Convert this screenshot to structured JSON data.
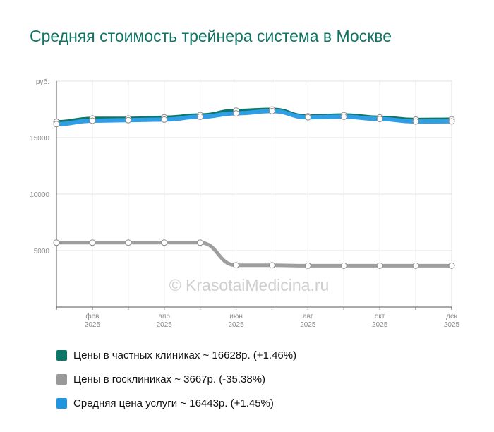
{
  "chart_data": {
    "type": "line",
    "title": "Средняя стоимость трейнера система в Москве",
    "ylabel": "руб.",
    "ylim": [
      0,
      20000
    ],
    "y_ticks": [
      {
        "value": 5000,
        "label": "5000"
      },
      {
        "value": 10000,
        "label": "10000"
      },
      {
        "value": 15000,
        "label": "15000"
      },
      {
        "value": 20000,
        "label": "руб."
      }
    ],
    "x_points": 12,
    "x_ticks": [
      {
        "index": 1,
        "label": "фев",
        "year": "2025"
      },
      {
        "index": 3,
        "label": "апр",
        "year": "2025"
      },
      {
        "index": 5,
        "label": "июн",
        "year": "2025"
      },
      {
        "index": 7,
        "label": "авг",
        "year": "2025"
      },
      {
        "index": 9,
        "label": "окт",
        "year": "2025"
      },
      {
        "index": 11,
        "label": "дек",
        "year": "2025"
      }
    ],
    "grid": true,
    "legend_position": "bottom",
    "watermark": "© KrasotaiMedicina.ru",
    "series": [
      {
        "name": "Цены в частных клиниках",
        "color": "#0b7766",
        "stroke": "#0b7766",
        "width": 5,
        "values": [
          16400,
          16700,
          16700,
          16800,
          17000,
          17400,
          17500,
          16900,
          17000,
          16800,
          16600,
          16628
        ]
      },
      {
        "name": "Цены в госклиниках",
        "color": "#999999",
        "stroke": "#9e9e9e",
        "width": 5,
        "values": [
          5700,
          5700,
          5700,
          5700,
          5700,
          3700,
          3700,
          3667,
          3667,
          3667,
          3667,
          3667
        ]
      },
      {
        "name": "Средняя цена услуги",
        "color": "#2196e0",
        "stroke": "#2f9ee6",
        "width": 6,
        "values": [
          16200,
          16500,
          16550,
          16600,
          16850,
          17150,
          17350,
          16800,
          16850,
          16650,
          16430,
          16443
        ]
      }
    ]
  },
  "legend": [
    {
      "label": "Цены в частных клиниках ~ 16628р. (+1.46%)",
      "color": "#0b7766"
    },
    {
      "label": "Цены в госклиниках ~ 3667р. (-35.38%)",
      "color": "#999999"
    },
    {
      "label": "Средняя цена услуги ~ 16443р. (+1.45%)",
      "color": "#2196e0"
    }
  ]
}
